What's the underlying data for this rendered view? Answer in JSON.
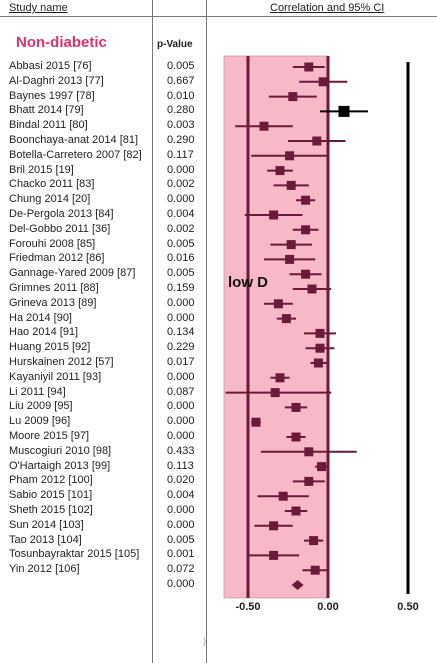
{
  "header": {
    "study_name": "Study name",
    "effect_header": "Correlation and 95% CI",
    "pvalue_header": "p-Value"
  },
  "subgroup_label": "Non-diabetic",
  "annotation": "low D",
  "colors": {
    "shade": "#f7b8c8",
    "marker": "#6b1a3a",
    "highlight_marker": "#000000",
    "subgroup_text": "#e0306a"
  },
  "chart_data": {
    "type": "forest",
    "title": "",
    "xlabel": "",
    "ylabel": "",
    "xlim": [
      -0.65,
      0.55
    ],
    "shaded_range": [
      -0.65,
      0.0
    ],
    "reference_lines": [
      -0.5,
      0.0,
      0.5
    ],
    "x_ticks": [
      "-0.50",
      "0.00",
      "0.50"
    ],
    "studies": [
      {
        "name": "Abbasi 2015 [76]",
        "p": "0.005",
        "r": -0.12,
        "lo": -0.22,
        "hi": -0.02
      },
      {
        "name": "Al-Daghri 2013 [77]",
        "p": "0.667",
        "r": -0.03,
        "lo": -0.18,
        "hi": 0.12
      },
      {
        "name": "Baynes 1997 [78]",
        "p": "0.010",
        "r": -0.22,
        "lo": -0.37,
        "hi": -0.07
      },
      {
        "name": "Bhatt 2014 [79]",
        "p": "0.280",
        "r": 0.1,
        "lo": -0.05,
        "hi": 0.25,
        "highlight": true
      },
      {
        "name": "Bindal 2011 [80]",
        "p": "0.003",
        "r": -0.4,
        "lo": -0.58,
        "hi": -0.22
      },
      {
        "name": "Boonchaya-anat 2014 [81]",
        "p": "0.290",
        "r": -0.07,
        "lo": -0.25,
        "hi": 0.11
      },
      {
        "name": "Botella-Carretero 2007 [82]",
        "p": "0.117",
        "r": -0.24,
        "lo": -0.48,
        "hi": 0.0
      },
      {
        "name": "Bril 2015 [19]",
        "p": "0.000",
        "r": -0.3,
        "lo": -0.38,
        "hi": -0.22
      },
      {
        "name": "Chacko 2011 [83]",
        "p": "0.002",
        "r": -0.23,
        "lo": -0.34,
        "hi": -0.12
      },
      {
        "name": "Chung 2014 [20]",
        "p": "0.000",
        "r": -0.14,
        "lo": -0.2,
        "hi": -0.08
      },
      {
        "name": "De-Pergola 2013 [84]",
        "p": "0.004",
        "r": -0.34,
        "lo": -0.52,
        "hi": -0.16
      },
      {
        "name": "Del-Gobbo 2011 [36]",
        "p": "0.002",
        "r": -0.14,
        "lo": -0.22,
        "hi": -0.06
      },
      {
        "name": "Forouhi 2008 [85]",
        "p": "0.005",
        "r": -0.23,
        "lo": -0.36,
        "hi": -0.1
      },
      {
        "name": "Friedman 2012 [86]",
        "p": "0.016",
        "r": -0.24,
        "lo": -0.4,
        "hi": -0.08
      },
      {
        "name": "Gannage-Yared 2009 [87]",
        "p": "0.005",
        "r": -0.14,
        "lo": -0.24,
        "hi": -0.04
      },
      {
        "name": "Grimnes 2011 [88]",
        "p": "0.159",
        "r": -0.1,
        "lo": -0.22,
        "hi": 0.02
      },
      {
        "name": "Grineva 2013 [89]",
        "p": "0.000",
        "r": -0.31,
        "lo": -0.4,
        "hi": -0.22
      },
      {
        "name": "Ha 2014 [90]",
        "p": "0.000",
        "r": -0.26,
        "lo": -0.32,
        "hi": -0.2
      },
      {
        "name": "Hao 2014 [91]",
        "p": "0.134",
        "r": -0.05,
        "lo": -0.15,
        "hi": 0.05
      },
      {
        "name": "Huang 2015 [92]",
        "p": "0.229",
        "r": -0.05,
        "lo": -0.14,
        "hi": 0.04
      },
      {
        "name": "Hurskainen 2012 [57]",
        "p": "0.017",
        "r": -0.06,
        "lo": -0.11,
        "hi": -0.01
      },
      {
        "name": "Kayaniyil 2011 [93]",
        "p": "0.000",
        "r": -0.3,
        "lo": -0.36,
        "hi": -0.24
      },
      {
        "name": "Li 2011 [94]",
        "p": "0.087",
        "r": -0.33,
        "lo": -0.64,
        "hi": 0.02
      },
      {
        "name": "Liu 2009 [95]",
        "p": "0.000",
        "r": -0.2,
        "lo": -0.27,
        "hi": -0.13
      },
      {
        "name": "Lu 2009 [96]",
        "p": "0.000",
        "r": -0.45,
        "lo": -0.48,
        "hi": -0.42
      },
      {
        "name": "Moore 2015 [97]",
        "p": "0.000",
        "r": -0.2,
        "lo": -0.26,
        "hi": -0.14
      },
      {
        "name": "Muscogiuri 2010 [98]",
        "p": "0.433",
        "r": -0.12,
        "lo": -0.42,
        "hi": 0.18
      },
      {
        "name": "O'Hartaigh 2013 [99]",
        "p": "0.113",
        "r": -0.04,
        "lo": -0.08,
        "hi": 0.0
      },
      {
        "name": "Pham 2012 [100]",
        "p": "0.020",
        "r": -0.12,
        "lo": -0.22,
        "hi": -0.02
      },
      {
        "name": "Sabio 2015 [101]",
        "p": "0.004",
        "r": -0.28,
        "lo": -0.44,
        "hi": -0.12
      },
      {
        "name": "Sheth 2015 [102]",
        "p": "0.000",
        "r": -0.2,
        "lo": -0.27,
        "hi": -0.13
      },
      {
        "name": "Sun 2014 [103]",
        "p": "0.000",
        "r": -0.34,
        "lo": -0.46,
        "hi": -0.22
      },
      {
        "name": "Tao 2013 [104]",
        "p": "0.005",
        "r": -0.09,
        "lo": -0.15,
        "hi": -0.03
      },
      {
        "name": "Tosunbayraktar 2015 [105]",
        "p": "0.001",
        "r": -0.34,
        "lo": -0.5,
        "hi": -0.18
      },
      {
        "name": "Yin 2012 [106]",
        "p": "0.072",
        "r": -0.08,
        "lo": -0.16,
        "hi": 0.0
      }
    ],
    "summary": {
      "p": "0.000",
      "r": -0.19,
      "lo": -0.23,
      "hi": -0.15
    }
  }
}
